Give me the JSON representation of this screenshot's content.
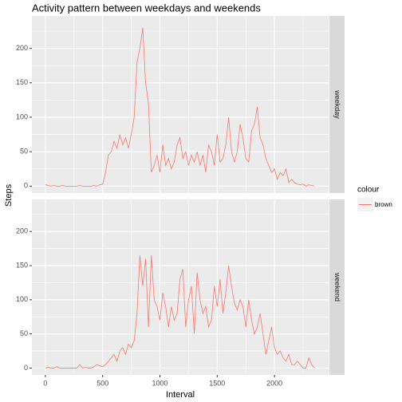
{
  "chart_data": {
    "type": "line",
    "title": "Activity pattern between weekdays and weekends",
    "xlabel": "Interval",
    "ylabel": "Steps",
    "legend": {
      "title": "colour",
      "labels": [
        "brown"
      ]
    },
    "color": "#F8766D",
    "grid": true,
    "x": [
      0,
      25,
      50,
      75,
      100,
      125,
      150,
      175,
      200,
      225,
      250,
      275,
      300,
      325,
      350,
      375,
      400,
      425,
      450,
      475,
      500,
      525,
      550,
      575,
      600,
      625,
      650,
      675,
      700,
      725,
      750,
      775,
      800,
      825,
      850,
      875,
      900,
      925,
      950,
      975,
      1000,
      1025,
      1050,
      1075,
      1100,
      1125,
      1150,
      1175,
      1200,
      1225,
      1250,
      1275,
      1300,
      1325,
      1350,
      1375,
      1400,
      1425,
      1450,
      1475,
      1500,
      1525,
      1550,
      1575,
      1600,
      1625,
      1650,
      1675,
      1700,
      1725,
      1750,
      1775,
      1800,
      1825,
      1850,
      1875,
      1900,
      1925,
      1950,
      1975,
      2000,
      2025,
      2050,
      2075,
      2100,
      2125,
      2150,
      2175,
      2200,
      2225,
      2250,
      2275,
      2300,
      2325,
      2350
    ],
    "series": [
      {
        "name": "weekday",
        "values": [
          2,
          1,
          0,
          1,
          0,
          0,
          1,
          0,
          0,
          0,
          0,
          0,
          1,
          0,
          0,
          0,
          0,
          1,
          0,
          2,
          3,
          20,
          45,
          50,
          65,
          55,
          75,
          60,
          70,
          55,
          75,
          100,
          180,
          200,
          230,
          150,
          120,
          20,
          30,
          45,
          20,
          60,
          30,
          40,
          25,
          35,
          60,
          70,
          40,
          50,
          30,
          45,
          35,
          50,
          30,
          45,
          20,
          60,
          50,
          30,
          75,
          35,
          40,
          60,
          100,
          50,
          35,
          50,
          90,
          70,
          40,
          35,
          80,
          90,
          115,
          70,
          60,
          40,
          30,
          20,
          25,
          10,
          20,
          15,
          25,
          5,
          10,
          5,
          3,
          2,
          3,
          0,
          2,
          1,
          0
        ]
      },
      {
        "name": "weekend",
        "values": [
          0,
          1,
          0,
          0,
          2,
          0,
          0,
          0,
          0,
          0,
          0,
          0,
          5,
          0,
          1,
          0,
          0,
          2,
          5,
          3,
          2,
          5,
          10,
          15,
          20,
          10,
          25,
          30,
          20,
          35,
          30,
          40,
          80,
          165,
          120,
          160,
          60,
          165,
          100,
          90,
          70,
          110,
          90,
          60,
          90,
          70,
          80,
          130,
          145,
          60,
          100,
          120,
          50,
          140,
          100,
          80,
          90,
          60,
          70,
          120,
          90,
          130,
          80,
          110,
          150,
          120,
          95,
          85,
          100,
          90,
          60,
          100,
          70,
          50,
          60,
          80,
          50,
          20,
          40,
          60,
          30,
          20,
          25,
          15,
          10,
          20,
          5,
          5,
          10,
          5,
          0,
          0,
          15,
          5,
          0
        ]
      }
    ],
    "xlim": [
      -117.75,
      2472.75
    ],
    "ylim": [
      -10,
      247
    ],
    "xticks": [
      0,
      500,
      1000,
      1500,
      2000
    ],
    "yticks": [
      0,
      50,
      100,
      150,
      200
    ]
  }
}
